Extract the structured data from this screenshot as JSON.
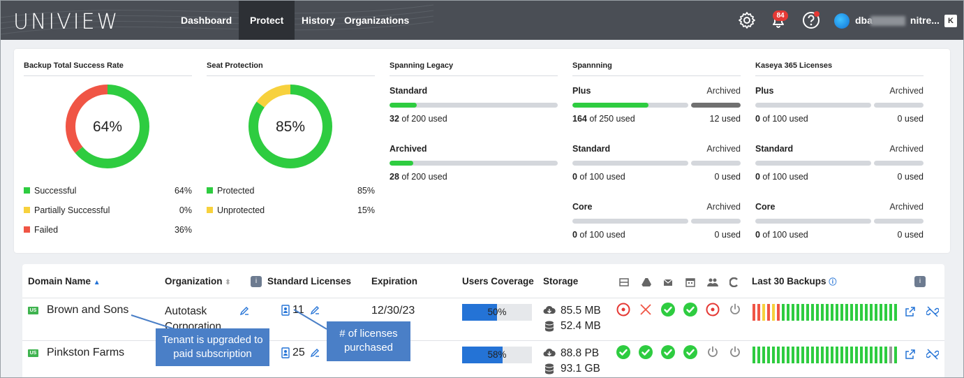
{
  "header": {
    "logo": "UNIVIEW",
    "nav": [
      "Dashboard",
      "Protect",
      "History",
      "Organizations"
    ],
    "active_nav": "Protect",
    "notification_count": "84",
    "username": "dba",
    "username_tail": "nitre...",
    "corner_button": "K"
  },
  "backup_rate": {
    "title": "Backup Total Success Rate",
    "center": "64%",
    "legend": [
      {
        "label": "Successful",
        "value": "64%",
        "color": "#2ecc40"
      },
      {
        "label": "Partially Successful",
        "value": "0%",
        "color": "#f7d13d"
      },
      {
        "label": "Failed",
        "value": "36%",
        "color": "#f05545"
      }
    ],
    "percentages": [
      64,
      0,
      36
    ]
  },
  "seat_protection": {
    "title": "Seat Protection",
    "center": "85%",
    "legend": [
      {
        "label": "Protected",
        "value": "85%",
        "color": "#2ecc40"
      },
      {
        "label": "Unprotected",
        "value": "15%",
        "color": "#f7d13d"
      }
    ],
    "percentages": [
      85,
      15
    ]
  },
  "spanning_legacy": {
    "title": "Spanning Legacy",
    "items": [
      {
        "name": "Standard",
        "used": "32",
        "total": " of 200 used",
        "fraction": 0.16
      },
      {
        "name": "Archived",
        "used": "28",
        "total": " of 200 used",
        "fraction": 0.14
      }
    ]
  },
  "spanning": {
    "title": "Spannning",
    "archived_label": "Archived",
    "items": [
      {
        "name": "Plus",
        "used": "164",
        "total": " of 250 used",
        "fraction": 0.656,
        "archived_used": "12 used",
        "archived_fraction": 1.0
      },
      {
        "name": "Standard",
        "used": "0",
        "total": " of 100 used",
        "fraction": 0,
        "archived_used": "0 used",
        "archived_fraction": 0
      },
      {
        "name": "Core",
        "used": "0",
        "total": " of 100 used",
        "fraction": 0,
        "archived_used": "0 used",
        "archived_fraction": 0
      }
    ]
  },
  "kaseya": {
    "title": "Kaseya 365 Licenses",
    "archived_label": "Archived",
    "items": [
      {
        "name": "Plus",
        "used": "0",
        "total": " of 100 used",
        "fraction": 0,
        "archived_used": "0 used",
        "archived_fraction": 0
      },
      {
        "name": "Standard",
        "used": "0",
        "total": " of 100 used",
        "fraction": 0,
        "archived_used": "0 used",
        "archived_fraction": 0
      },
      {
        "name": "Core",
        "used": "0",
        "total": " of 100 used",
        "fraction": 0,
        "archived_used": "0 used",
        "archived_fraction": 0
      }
    ]
  },
  "table": {
    "headers": {
      "domain": "Domain Name",
      "org": "Organization",
      "licenses": "Standard Licenses",
      "expiration": "Expiration",
      "coverage": "Users Coverage",
      "storage": "Storage",
      "last30": "Last 30 Backups"
    },
    "rows": [
      {
        "region": "US",
        "domain": "Brown and Sons",
        "org": "Autotask Corporation",
        "licenses": "11",
        "expiration": "12/30/23",
        "coverage": "50%",
        "coverage_fraction": 0.5,
        "storage1": "85.5 MB",
        "storage2": "52.4 MB",
        "services": [
          "target",
          "x",
          "check",
          "check",
          "target",
          "power"
        ],
        "backups": [
          "red",
          "red",
          "yellow",
          "red",
          "yellow",
          "red",
          "green",
          "green",
          "green",
          "green",
          "green",
          "green",
          "green",
          "green",
          "green",
          "green",
          "green",
          "green",
          "green",
          "green",
          "green",
          "green",
          "green",
          "green",
          "green",
          "green",
          "green",
          "green",
          "green",
          "green"
        ]
      },
      {
        "region": "US",
        "domain": "Pinkston Farms",
        "org": "",
        "licenses": "25",
        "expiration": "",
        "coverage": "58%",
        "coverage_fraction": 0.58,
        "storage1": "88.8 PB",
        "storage2": "93.1 GB",
        "services": [
          "check",
          "check",
          "check",
          "check",
          "power",
          "power"
        ],
        "backups": [
          "green",
          "green",
          "green",
          "green",
          "green",
          "green",
          "green",
          "green",
          "green",
          "green",
          "green",
          "green",
          "green",
          "green",
          "green",
          "green",
          "green",
          "green",
          "green",
          "green",
          "green",
          "green",
          "green",
          "green",
          "green",
          "green",
          "green",
          "green",
          "gray",
          "green"
        ]
      }
    ]
  },
  "callouts": {
    "tenant": "Tenant is upgraded to paid subscription",
    "licenses": "# of licenses purchased"
  },
  "colors": {
    "green": "#2ecc40",
    "red": "#f05545",
    "yellow": "#f7d13d",
    "blue": "#2473d6",
    "topbar": "#4a4e55"
  }
}
